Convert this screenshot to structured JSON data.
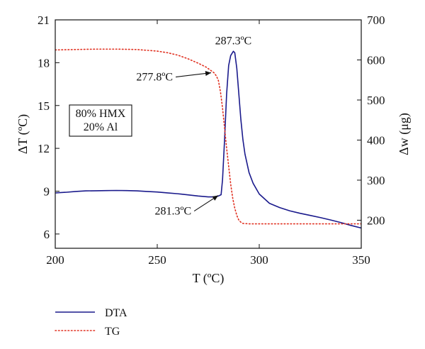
{
  "chart_data": {
    "type": "line",
    "xlabel": "T (ºC)",
    "ylabel_left": "ΔT (ºC)",
    "ylabel_right": "Δw (μg)",
    "xlim": [
      200,
      350
    ],
    "ylim_left": [
      5,
      21
    ],
    "ylim_right": [
      130,
      700
    ],
    "xticks": [
      200,
      250,
      300,
      350
    ],
    "yticks_left": [
      6,
      9,
      12,
      15,
      18,
      21
    ],
    "yticks_right": [
      200,
      300,
      400,
      500,
      600,
      700
    ],
    "grid": false,
    "legend_position": "bottom-left",
    "sample_box": [
      "80% HMX",
      "20% Al"
    ],
    "annotations": [
      {
        "text": "287.3ºC",
        "x": 287.3,
        "y": 18.8,
        "series": "DTA",
        "arrow": false
      },
      {
        "text": "277.8ºC",
        "x": 277.8,
        "y": 568,
        "series": "TG",
        "arrow": true
      },
      {
        "text": "281.3ºC",
        "x": 281.3,
        "y": 8.7,
        "series": "DTA",
        "arrow": true
      }
    ],
    "series": [
      {
        "name": "DTA",
        "axis": "left",
        "color": "#1a1a8c",
        "style": "solid",
        "x": [
          200,
          205,
          210,
          215,
          220,
          225,
          230,
          235,
          240,
          245,
          250,
          255,
          260,
          265,
          270,
          275,
          278,
          280,
          281.3,
          282,
          283,
          284,
          285,
          286,
          287.3,
          288,
          289,
          290,
          291,
          292,
          293,
          295,
          297,
          300,
          305,
          310,
          315,
          320,
          325,
          330,
          335,
          340,
          345,
          350
        ],
        "y": [
          8.88,
          8.92,
          8.98,
          9.02,
          9.03,
          9.04,
          9.05,
          9.04,
          9.02,
          8.98,
          8.94,
          8.88,
          8.82,
          8.74,
          8.66,
          8.6,
          8.6,
          8.66,
          8.75,
          9.8,
          12.6,
          15.8,
          17.8,
          18.5,
          18.8,
          18.7,
          17.6,
          15.8,
          14.0,
          12.6,
          11.6,
          10.3,
          9.55,
          8.8,
          8.15,
          7.85,
          7.62,
          7.45,
          7.3,
          7.15,
          6.98,
          6.8,
          6.6,
          6.42
        ]
      },
      {
        "name": "TG",
        "axis": "right",
        "color": "#e03020",
        "style": "dotted",
        "x": [
          200,
          210,
          220,
          230,
          240,
          250,
          255,
          260,
          265,
          270,
          274,
          277.8,
          279,
          280,
          281,
          282,
          283,
          284,
          285,
          286,
          287,
          288,
          289,
          290,
          291,
          292,
          295,
          300,
          310,
          320,
          330,
          340,
          350
        ],
        "y": [
          625,
          626,
          627,
          627,
          626,
          622,
          618,
          612,
          603,
          592,
          582,
          568,
          560,
          548,
          520,
          480,
          430,
          380,
          335,
          290,
          255,
          230,
          212,
          200,
          195,
          192,
          191,
          191,
          191,
          191,
          191,
          191,
          191
        ]
      }
    ]
  }
}
